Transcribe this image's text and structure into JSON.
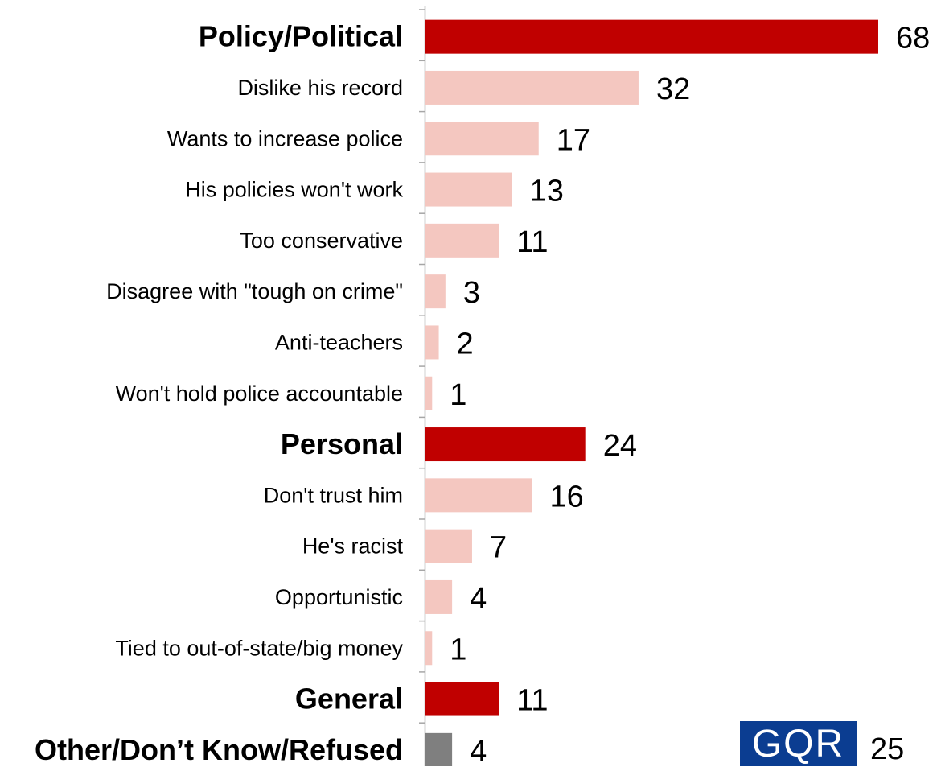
{
  "chart_data": {
    "type": "bar",
    "orientation": "horizontal",
    "categories": [
      "Policy/Political",
      "Dislike his record",
      "Wants to increase police",
      "His policies won't work",
      "Too conservative",
      "Disagree with \"tough on crime\"",
      "Anti-teachers",
      "Won't hold police accountable",
      "Personal",
      "Don't trust him",
      "He's racist",
      "Opportunistic",
      "Tied to out-of-state/big money",
      "General",
      "Other/Don’t Know/Refused"
    ],
    "values": [
      68,
      32,
      17,
      13,
      11,
      3,
      2,
      1,
      24,
      16,
      7,
      4,
      1,
      11,
      4
    ],
    "value_labels": [
      "68",
      "32",
      "17",
      "13",
      "11",
      "3",
      "2",
      "1",
      "24",
      "16",
      "7",
      "4",
      "1",
      "11",
      "4"
    ],
    "kinds": [
      "group",
      "item",
      "item",
      "item",
      "item",
      "item",
      "item",
      "item",
      "group",
      "item",
      "item",
      "item",
      "item",
      "group",
      "other"
    ],
    "colors": {
      "group": "#c00000",
      "item": "#f4c7c0",
      "other": "#7f7f7f",
      "axis": "#a6a6a6"
    },
    "title": "",
    "xlabel": "",
    "ylabel": "",
    "xlim": [
      0,
      68
    ],
    "grid": false,
    "legend": "none"
  },
  "footer": {
    "logo_text": "GQR",
    "page_number": "25"
  }
}
